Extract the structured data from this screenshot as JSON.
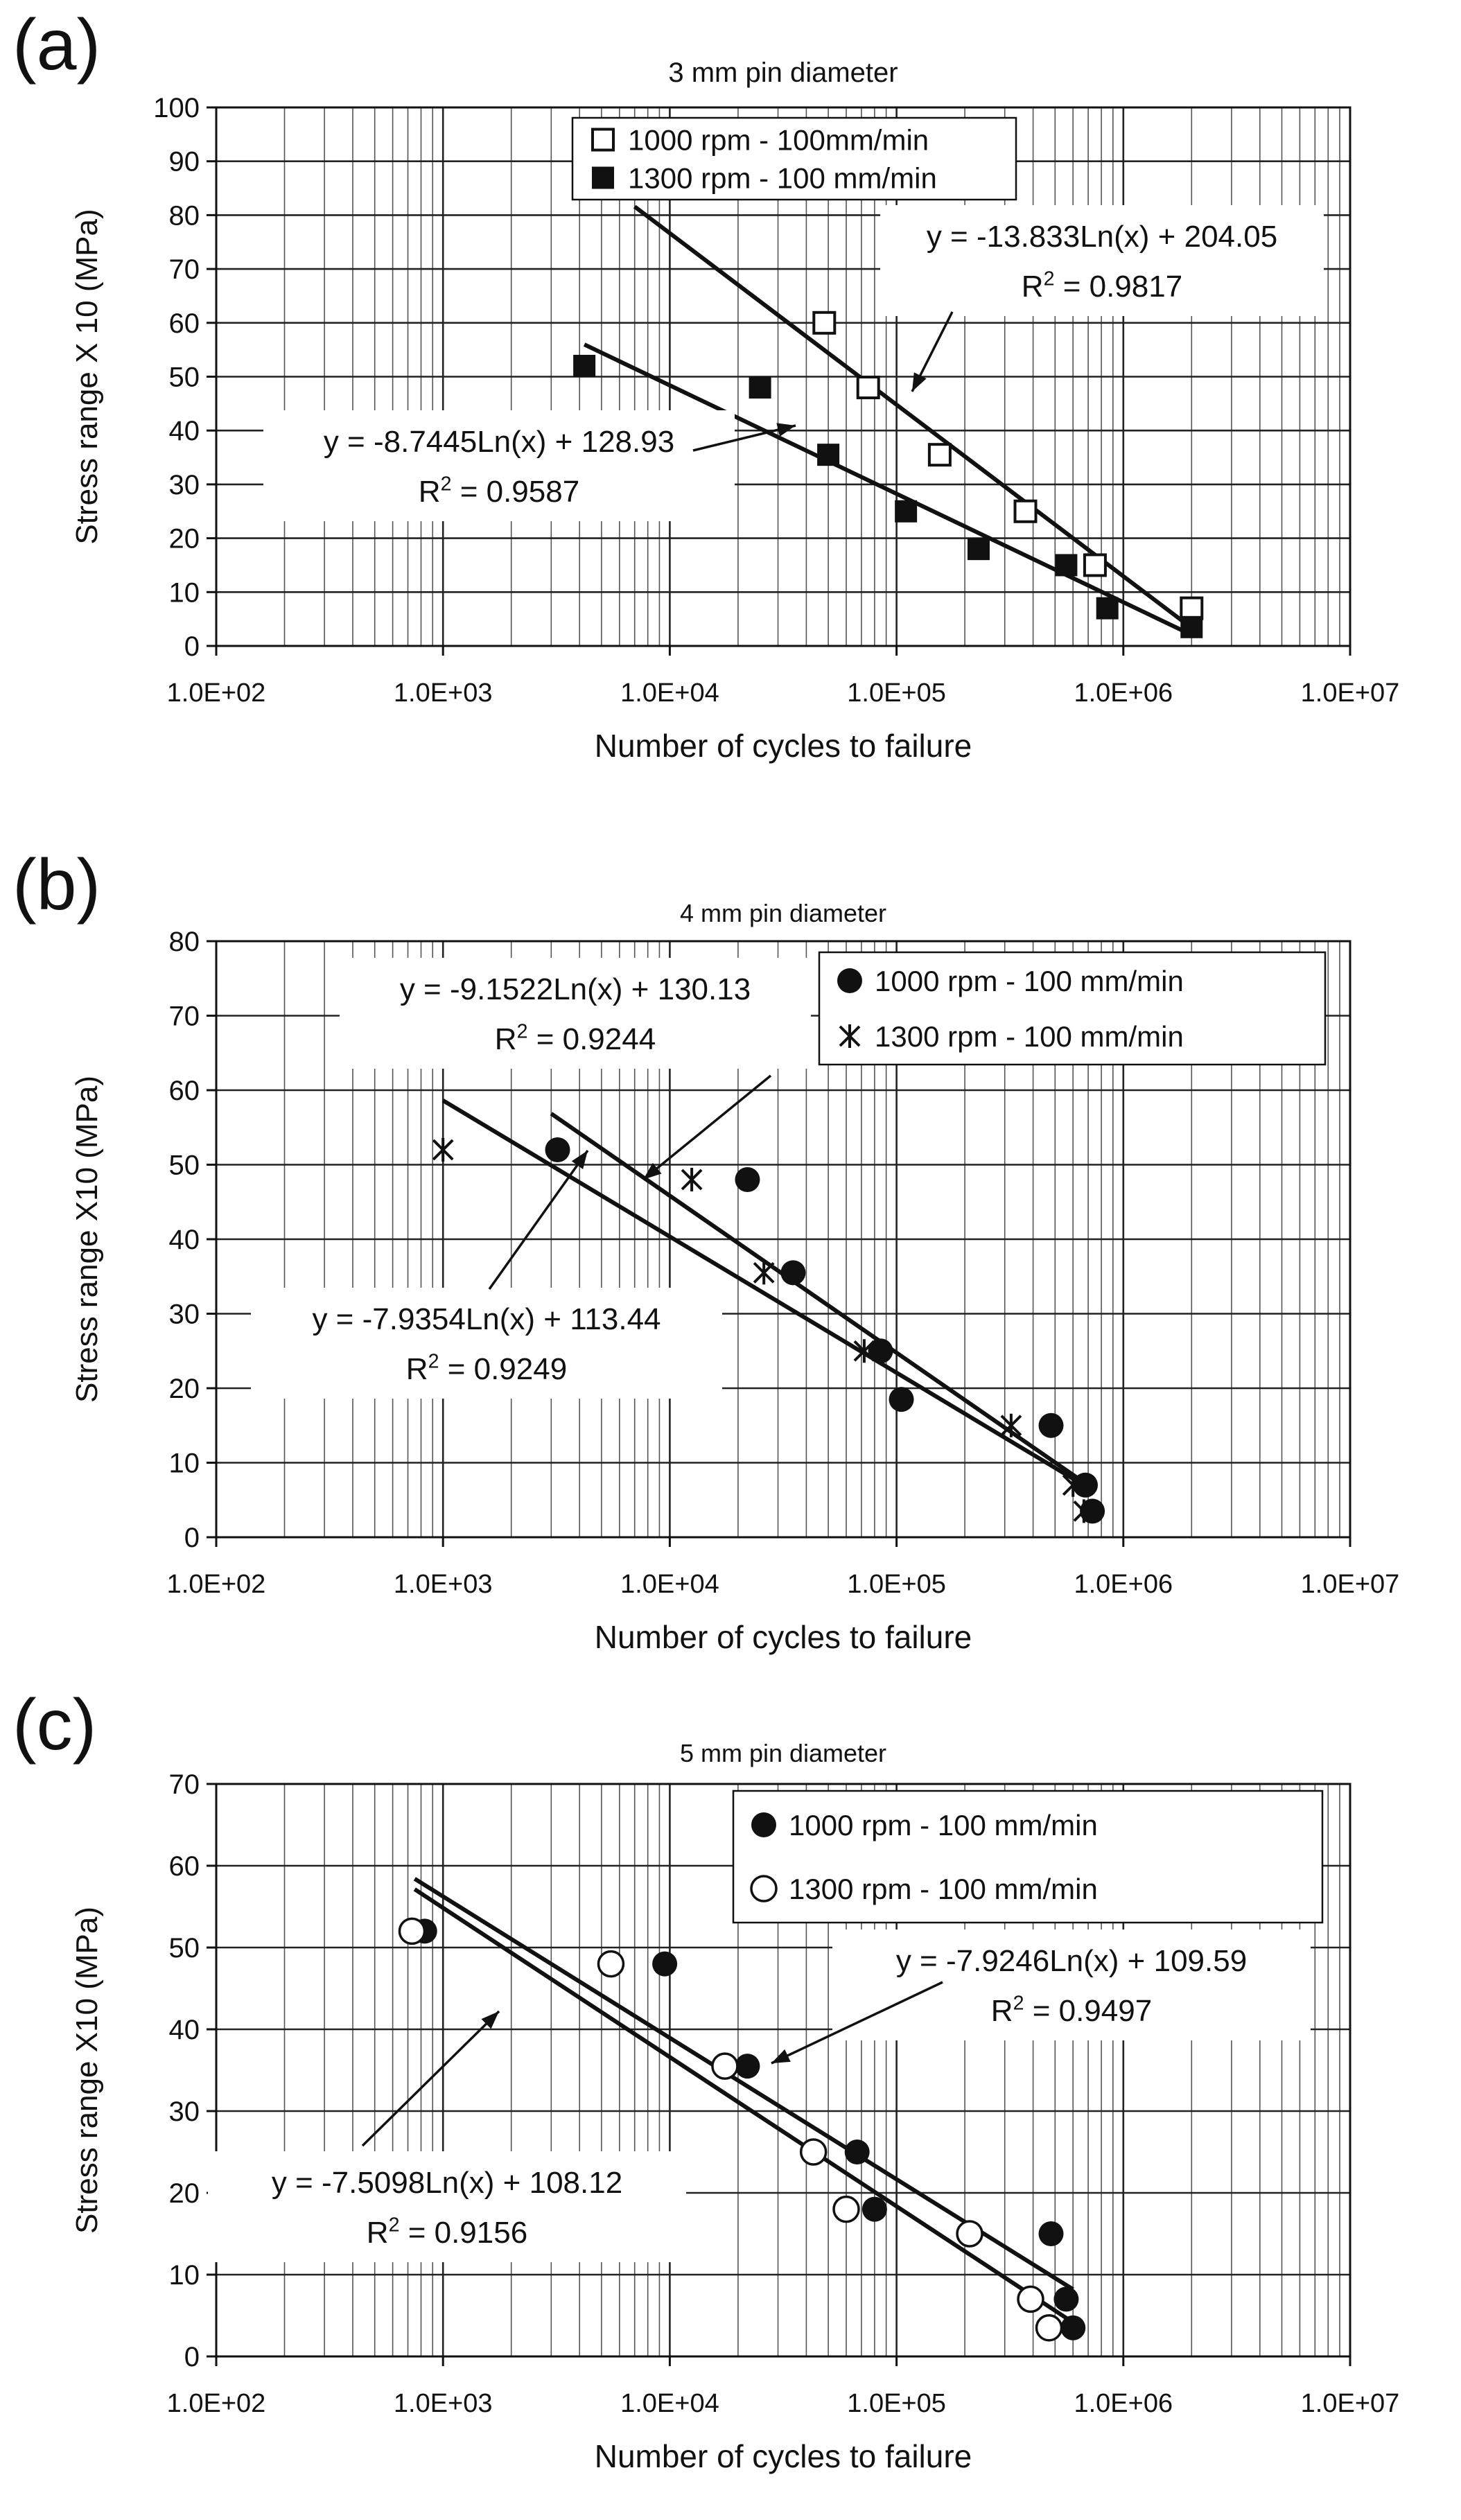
{
  "chart_data": [
    {
      "type": "scatter",
      "panel_label": "(a)",
      "title": "3 mm pin diameter",
      "xlabel": "Number of cycles to failure",
      "ylabel": "Stress range X 10 (MPa)",
      "xscale": "log",
      "xlim": [
        100,
        10000000
      ],
      "ylim": [
        0,
        100
      ],
      "ytick_step": 10,
      "xtick_labels": [
        "1.0E+02",
        "1.0E+03",
        "1.0E+04",
        "1.0E+05",
        "1.0E+06",
        "1.0E+07"
      ],
      "grid": true,
      "legend_position": "top-center",
      "series": [
        {
          "name": "1000 rpm - 100mm/min",
          "marker": "open-square",
          "points": [
            [
              48000,
              60
            ],
            [
              75000,
              48
            ],
            [
              155000,
              35.5
            ],
            [
              370000,
              25
            ],
            [
              750000,
              15
            ],
            [
              2000000,
              7
            ]
          ],
          "fit": {
            "slope": -13.833,
            "intercept": 204.05,
            "x_range": [
              7000,
              2000000
            ]
          },
          "fit_label": {
            "equation": "y = -13.833Ln(x) + 204.05",
            "r2": "= 0.9817"
          }
        },
        {
          "name": "1300 rpm - 100 mm/min",
          "marker": "filled-square",
          "points": [
            [
              4200,
              52
            ],
            [
              25000,
              48
            ],
            [
              50000,
              35.5
            ],
            [
              110000,
              25
            ],
            [
              230000,
              18
            ],
            [
              560000,
              15
            ],
            [
              850000,
              7
            ],
            [
              2000000,
              3.5
            ]
          ],
          "fit": {
            "slope": -8.7445,
            "intercept": 128.93,
            "x_range": [
              4200,
              2000000
            ]
          },
          "fit_label": {
            "equation": "y = -8.7445Ln(x) + 128.93",
            "r2": "= 0.9587"
          }
        }
      ]
    },
    {
      "type": "scatter",
      "panel_label": "(b)",
      "title": "4 mm pin diameter",
      "xlabel": "Number of cycles to failure",
      "ylabel": "Stress range X10 (MPa)",
      "xscale": "log",
      "xlim": [
        100,
        10000000
      ],
      "ylim": [
        0,
        80
      ],
      "ytick_step": 10,
      "xtick_labels": [
        "1.0E+02",
        "1.0E+03",
        "1.0E+04",
        "1.0E+05",
        "1.0E+06",
        "1.0E+07"
      ],
      "grid": true,
      "legend_position": "top-right",
      "series": [
        {
          "name": "1000 rpm - 100 mm/min",
          "marker": "filled-circle",
          "points": [
            [
              3200,
              52
            ],
            [
              22000,
              48
            ],
            [
              35000,
              35.5
            ],
            [
              85000,
              25
            ],
            [
              105000,
              18.5
            ],
            [
              480000,
              15
            ],
            [
              680000,
              7
            ],
            [
              730000,
              3.5
            ]
          ],
          "fit": {
            "slope": -9.1522,
            "intercept": 130.13,
            "x_range": [
              3000,
              730000
            ]
          },
          "fit_label": {
            "equation": "y = -9.1522Ln(x) + 130.13",
            "r2": "= 0.9244"
          }
        },
        {
          "name": "1300 rpm - 100 mm/min",
          "marker": "star",
          "points": [
            [
              1000,
              52
            ],
            [
              12500,
              48
            ],
            [
              26000,
              35.5
            ],
            [
              72000,
              25
            ],
            [
              320000,
              15
            ],
            [
              600000,
              7
            ],
            [
              670000,
              3.5
            ]
          ],
          "fit": {
            "slope": -7.9354,
            "intercept": 113.44,
            "x_range": [
              1000,
              680000
            ]
          },
          "fit_label": {
            "equation": "y = -7.9354Ln(x) + 113.44",
            "r2": "= 0.9249"
          }
        }
      ]
    },
    {
      "type": "scatter",
      "panel_label": "(c)",
      "title": "5 mm pin diameter",
      "xlabel": "Number of cycles to failure",
      "ylabel": "Stress range X10 (MPa)",
      "xscale": "log",
      "xlim": [
        100,
        10000000
      ],
      "ylim": [
        0,
        70
      ],
      "ytick_step": 10,
      "xtick_labels": [
        "1.0E+02",
        "1.0E+03",
        "1.0E+04",
        "1.0E+05",
        "1.0E+06",
        "1.0E+07"
      ],
      "grid": true,
      "legend_position": "top-right",
      "series": [
        {
          "name": "1000 rpm - 100 mm/min",
          "marker": "filled-circle",
          "points": [
            [
              830,
              52
            ],
            [
              9500,
              48
            ],
            [
              22000,
              35.5
            ],
            [
              67000,
              25
            ],
            [
              80000,
              18
            ],
            [
              480000,
              15
            ],
            [
              560000,
              7
            ],
            [
              600000,
              3.5
            ]
          ],
          "fit": {
            "slope": -7.9246,
            "intercept": 109.59,
            "x_range": [
              750,
              600000
            ]
          },
          "fit_label": {
            "equation": "y = -7.9246Ln(x) + 109.59",
            "r2": "= 0.9497"
          }
        },
        {
          "name": "1300 rpm - 100 mm/min",
          "marker": "open-circle",
          "points": [
            [
              730,
              52
            ],
            [
              5500,
              48
            ],
            [
              17500,
              35.5
            ],
            [
              43000,
              25
            ],
            [
              60000,
              18
            ],
            [
              210000,
              15
            ],
            [
              390000,
              7
            ],
            [
              470000,
              3.5
            ]
          ],
          "fit": {
            "slope": -7.5098,
            "intercept": 108.12,
            "x_range": [
              750,
              600000
            ]
          },
          "fit_label": {
            "equation": "y = -7.5098Ln(x) + 108.12",
            "r2": "= 0.9156"
          }
        }
      ]
    }
  ]
}
